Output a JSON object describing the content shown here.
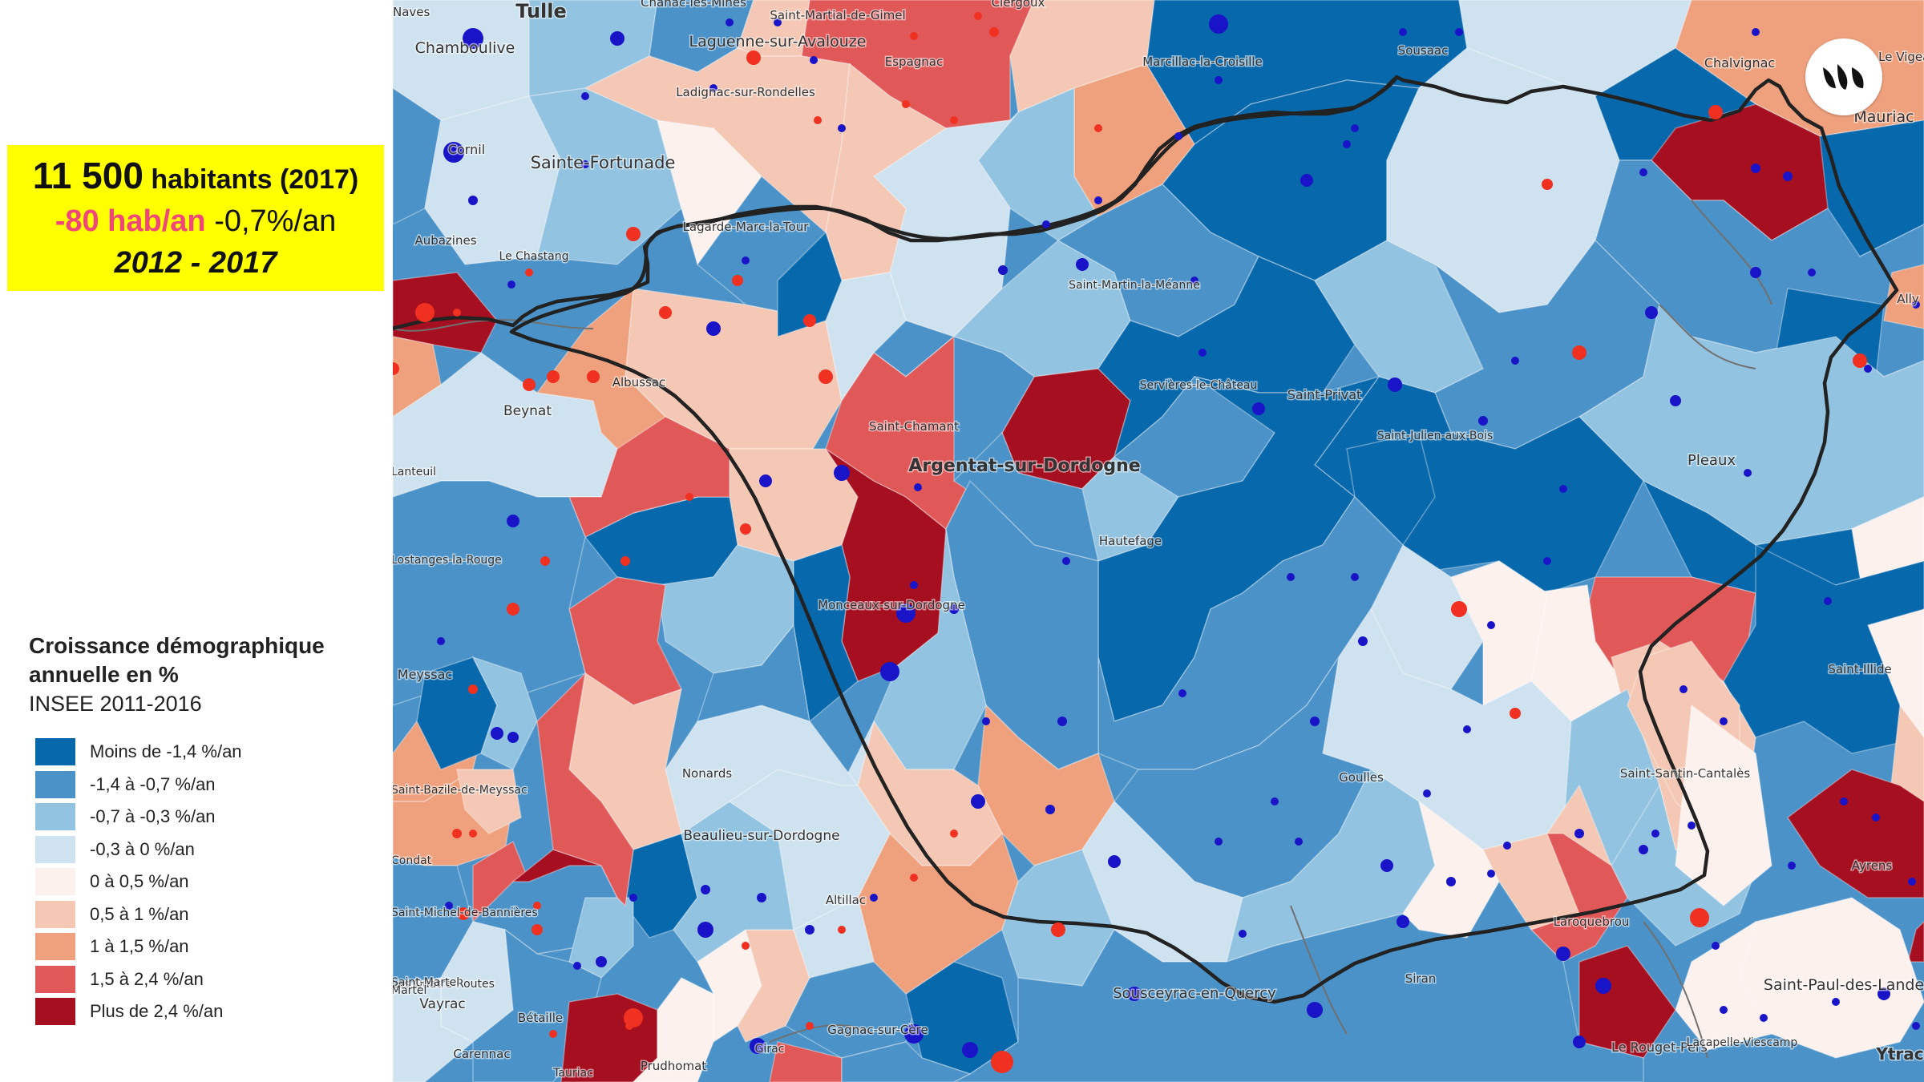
{
  "stats": {
    "population_value": "11 500",
    "population_unit": "habitants (2017)",
    "change_per_year": "-80 hab/an",
    "change_percent": "-0,7%/an",
    "period": "2012 - 2017"
  },
  "legend": {
    "title_line1": "Croissance démographique",
    "title_line2": "annuelle en %",
    "source": "INSEE 2011-2016",
    "classes": [
      {
        "label": "Moins de -1,4 %/an",
        "color": "#0868ac"
      },
      {
        "label": "-1,4 à -0,7 %/an",
        "color": "#4a92c8"
      },
      {
        "label": "-0,7 à -0,3 %/an",
        "color": "#92c3e0"
      },
      {
        "label": "-0,3 à 0 %/an",
        "color": "#cfe2ef"
      },
      {
        "label": "0 à 0,5 %/an",
        "color": "#fdf1ee"
      },
      {
        "label": "0,5 à 1 %/an",
        "color": "#f4c8b4"
      },
      {
        "label": "1 à 1,5 %/an",
        "color": "#efa17e"
      },
      {
        "label": "1,5 à 2,4 %/an",
        "color": "#e05858"
      },
      {
        "label": "Plus de 2,4 %/an",
        "color": "#a50f20"
      }
    ]
  },
  "marker_colors": {
    "decline": "#1a14c8",
    "growth": "#f03020"
  },
  "logo": {
    "icon": "brand-logo-icon"
  },
  "places": [
    {
      "name": "Tulle"
    },
    {
      "name": "Chamboulive"
    },
    {
      "name": "Chanac-les-Mines"
    },
    {
      "name": "Saint-Martial-de-Gimel"
    },
    {
      "name": "Clergoux"
    },
    {
      "name": "Laguenne-sur-Avalouze"
    },
    {
      "name": "Espagnac"
    },
    {
      "name": "Sousaac"
    },
    {
      "name": "Chalvignac"
    },
    {
      "name": "Le Vigean"
    },
    {
      "name": "Mauriac"
    },
    {
      "name": "Naves"
    },
    {
      "name": "Ladignac-sur-Rondelles"
    },
    {
      "name": "Marcillac-la-Croisille"
    },
    {
      "name": "Cornil"
    },
    {
      "name": "Sainte-Fortunade"
    },
    {
      "name": "Lagarde-Marc-la-Tour"
    },
    {
      "name": "Aubazines"
    },
    {
      "name": "Le Chastang"
    },
    {
      "name": "Saint-Martin-la-Méanne"
    },
    {
      "name": "Ally"
    },
    {
      "name": "Albussac"
    },
    {
      "name": "Servières-le-Château"
    },
    {
      "name": "Saint-Privat"
    },
    {
      "name": "Beynat"
    },
    {
      "name": "Saint-Chamant"
    },
    {
      "name": "Saint-Julien-aux-Bois"
    },
    {
      "name": "Argentat-sur-Dordogne"
    },
    {
      "name": "Pleaux"
    },
    {
      "name": "Lanteuil"
    },
    {
      "name": "Hautefage"
    },
    {
      "name": "Lostanges-la-Rouge"
    },
    {
      "name": "Monceaux-sur-Dordogne"
    },
    {
      "name": "Saint-Illide"
    },
    {
      "name": "Meyssac"
    },
    {
      "name": "Nonards"
    },
    {
      "name": "Goulles"
    },
    {
      "name": "Saint-Santin-Cantalès"
    },
    {
      "name": "Saint-Bazile-de-Meyssac"
    },
    {
      "name": "Beaulieu-sur-Dordogne"
    },
    {
      "name": "Condat"
    },
    {
      "name": "Altillac"
    },
    {
      "name": "Saint-Michel-de-Bannières"
    },
    {
      "name": "Laroquebrou"
    },
    {
      "name": "Ayrens"
    },
    {
      "name": "Vayrac"
    },
    {
      "name": "Bétaille"
    },
    {
      "name": "Sousceyrac-en-Quercy"
    },
    {
      "name": "Siran"
    },
    {
      "name": "Saint-Paul-des-Landes"
    },
    {
      "name": "Gagnac-sur-Cère"
    },
    {
      "name": "Carennac"
    },
    {
      "name": "Tauriac"
    },
    {
      "name": "Prudhomat"
    },
    {
      "name": "Girac"
    },
    {
      "name": "Le Rouget-Pers"
    },
    {
      "name": "Lacapelle-Viescamp"
    },
    {
      "name": "Ytrac"
    },
    {
      "name": "Les Quatre-Routes"
    },
    {
      "name": "Saint-Martel"
    },
    {
      "name": "Martel"
    }
  ]
}
